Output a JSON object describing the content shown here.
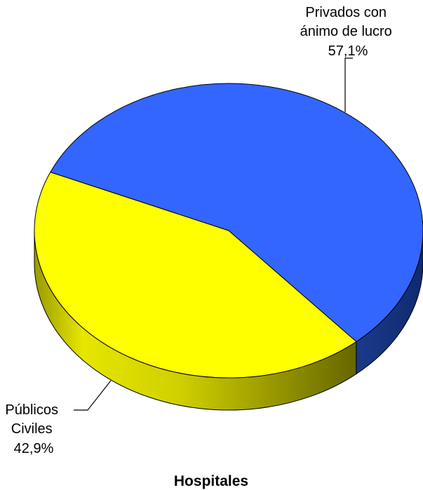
{
  "chart_data": {
    "type": "pie",
    "title": "Hospitales",
    "three_d": true,
    "slices": [
      {
        "name_lines": [
          "Privados con",
          "ánimo de lucro"
        ],
        "value_label": "57,1%",
        "value": 57.1,
        "color": "#3366ff"
      },
      {
        "name_lines": [
          "Públicos",
          "Civiles"
        ],
        "value_label": "42,9%",
        "value": 42.9,
        "color": "#ffff00"
      }
    ]
  }
}
